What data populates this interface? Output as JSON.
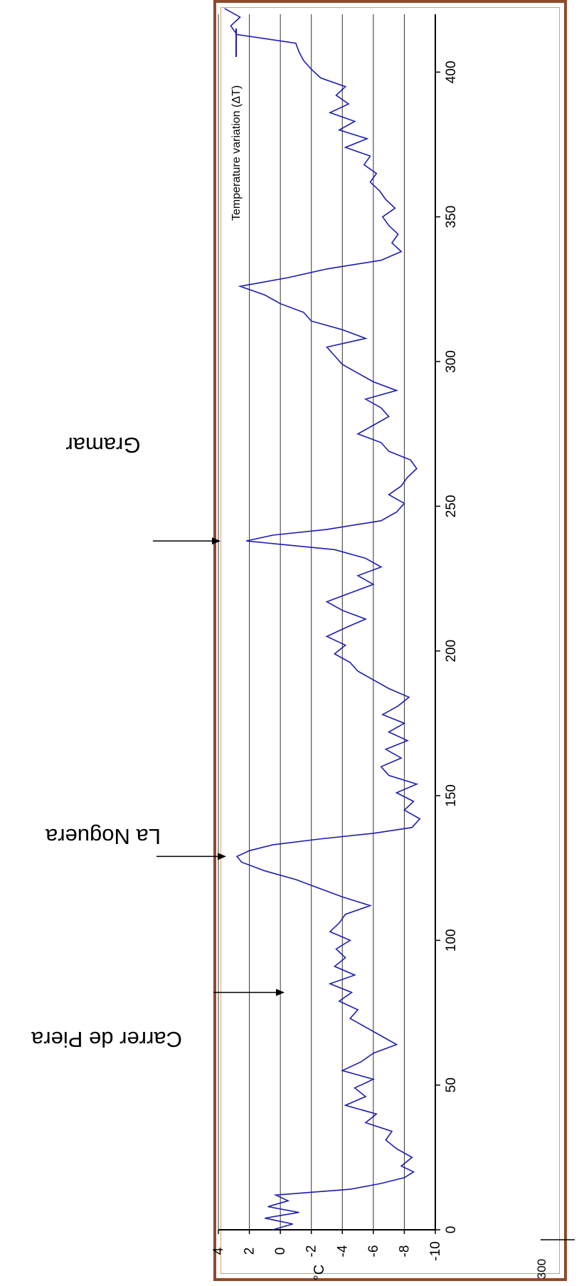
{
  "chart_data": {
    "type": "line",
    "orientation": "rotated-90-clockwise",
    "ylabel": "°C",
    "xlabel": "",
    "xlim": [
      0,
      420
    ],
    "ylim": [
      -10,
      4
    ],
    "x_ticks": [
      "0",
      "50",
      "100",
      "150",
      "200",
      "250",
      "300",
      "350",
      "400"
    ],
    "y_ticks": [
      "4",
      "2",
      "0",
      "-2",
      "-4",
      "-6",
      "-8",
      "-10"
    ],
    "grid": "horizontal",
    "legend": "top-right",
    "series": [
      {
        "name": "Temperature variation (ΔT)",
        "color": "#1c1cb0",
        "x": [
          0,
          2,
          4,
          6,
          8,
          10,
          12,
          14,
          16,
          18,
          20,
          22,
          25,
          28,
          31,
          34,
          37,
          40,
          43,
          46,
          49,
          52,
          55,
          58,
          61,
          64,
          67,
          70,
          73,
          76,
          79,
          82,
          85,
          88,
          91,
          94,
          97,
          100,
          103,
          106,
          109,
          112,
          115,
          118,
          121,
          124,
          127,
          129,
          131,
          133,
          135,
          137,
          139,
          142,
          145,
          148,
          151,
          154,
          157,
          160,
          163,
          166,
          169,
          172,
          175,
          178,
          181,
          184,
          187,
          190,
          193,
          196,
          199,
          202,
          205,
          208,
          211,
          214,
          217,
          220,
          223,
          226,
          229,
          232,
          235,
          238,
          240,
          242,
          245,
          248,
          251,
          254,
          257,
          260,
          263,
          266,
          269,
          272,
          275,
          278,
          281,
          284,
          287,
          290,
          293,
          296,
          299,
          302,
          305,
          308,
          311,
          314,
          317,
          320,
          323,
          326,
          329,
          332,
          335,
          338,
          341,
          344,
          347,
          350,
          353,
          356,
          359,
          362,
          365,
          368,
          371,
          374,
          377,
          380,
          383,
          386,
          389,
          392,
          395,
          398,
          401,
          404,
          407,
          410,
          413,
          416,
          419,
          422
        ],
        "values": [
          0.5,
          -0.8,
          1.0,
          -1.2,
          0.8,
          -0.5,
          0.3,
          -4.5,
          -6.5,
          -8.0,
          -8.6,
          -7.8,
          -8.5,
          -7.5,
          -6.8,
          -7.2,
          -5.5,
          -6.2,
          -4.2,
          -5.5,
          -4.8,
          -6.0,
          -4.0,
          -5.2,
          -6.0,
          -7.5,
          -6.5,
          -5.5,
          -4.5,
          -5.0,
          -3.8,
          -4.6,
          -3.2,
          -4.8,
          -3.5,
          -4.2,
          -3.6,
          -4.5,
          -3.2,
          -3.8,
          -4.2,
          -5.8,
          -4.0,
          -2.5,
          -1.0,
          1.0,
          2.5,
          2.8,
          2.0,
          0.5,
          -2.5,
          -6.0,
          -8.5,
          -9.0,
          -8.0,
          -8.6,
          -7.5,
          -8.8,
          -7.0,
          -6.5,
          -7.8,
          -6.8,
          -8.2,
          -7.0,
          -8.0,
          -6.6,
          -7.6,
          -8.3,
          -7.0,
          -6.0,
          -5.0,
          -4.5,
          -3.5,
          -4.2,
          -3.0,
          -4.2,
          -5.5,
          -4.0,
          -3.0,
          -4.5,
          -6.0,
          -5.0,
          -6.5,
          -5.5,
          -3.5,
          2.2,
          0.5,
          -3.0,
          -6.5,
          -7.5,
          -8.0,
          -7.0,
          -7.8,
          -8.2,
          -8.8,
          -8.4,
          -7.0,
          -6.5,
          -5.0,
          -6.0,
          -7.0,
          -6.5,
          -5.5,
          -7.5,
          -6.0,
          -5.0,
          -4.0,
          -3.5,
          -3.0,
          -5.5,
          -4.0,
          -2.0,
          -1.5,
          0.0,
          1.0,
          2.6,
          -0.5,
          -3.0,
          -6.5,
          -7.8,
          -7.2,
          -7.6,
          -7.0,
          -6.6,
          -7.4,
          -6.8,
          -6.4,
          -5.8,
          -6.2,
          -5.4,
          -5.8,
          -4.2,
          -5.6,
          -3.8,
          -4.8,
          -3.2,
          -4.4,
          -3.6,
          -4.2,
          -2.6,
          -2.0,
          -1.5,
          -1.2,
          -1.0,
          2.8,
          3.2,
          2.6,
          3.6
        ]
      }
    ],
    "annotations": [
      "Carrer de Piera",
      "La Noguera",
      "Gramar"
    ],
    "annotation_x": [
      82,
      129,
      238
    ],
    "outside_label": "300"
  }
}
